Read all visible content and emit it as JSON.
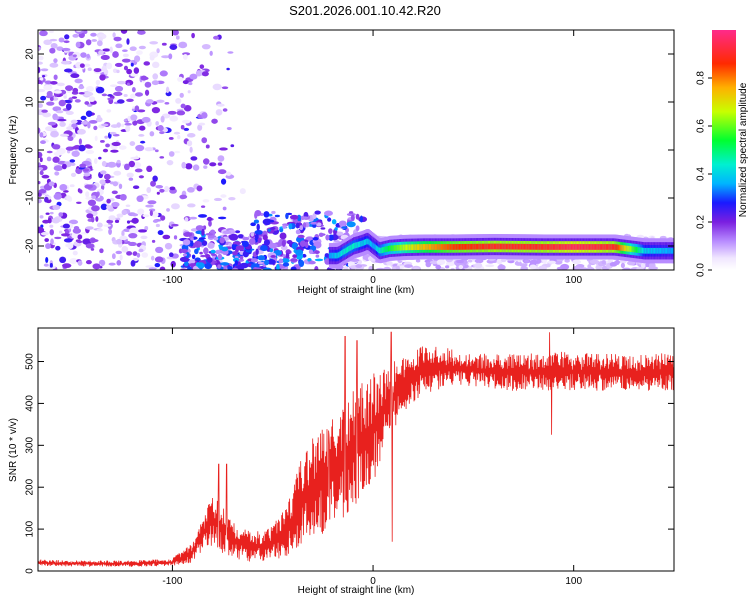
{
  "title": "S201.2026.001.10.42.R20",
  "colors": {
    "spectrogram_sparse": "#b38cff",
    "spectrogram_mid": "#7a1fe0",
    "snr_line": "#e8211e"
  },
  "chart_data": [
    {
      "type": "heatmap",
      "name": "spectrogram",
      "xlabel": "Height of straight line (km)",
      "ylabel": "Frequency (Hz)",
      "xlim": [
        -167,
        150
      ],
      "ylim": [
        -25,
        25
      ],
      "xticks": [
        -100,
        0,
        100
      ],
      "xtick_labels": [
        "-100",
        "0",
        "100"
      ],
      "yticks": [
        -20,
        -10,
        0,
        10,
        20
      ],
      "ytick_labels": [
        "-20",
        "-10",
        "0",
        "10",
        "20"
      ],
      "colorbar": {
        "label": "Normalized spectral amplitude",
        "range": [
          0,
          1
        ],
        "ticks": [
          0.0,
          0.2,
          0.4,
          0.6,
          0.8
        ],
        "tick_labels": [
          "0.0",
          "0.2",
          "0.4",
          "0.6",
          "0.8"
        ]
      },
      "ridge": {
        "description_values": "dominant frequency track (Hz) vs height (km)",
        "x": [
          -22,
          -18,
          -14,
          -10,
          -6,
          -3,
          0,
          3,
          8,
          15,
          25,
          40,
          60,
          85,
          100,
          120,
          135,
          150
        ],
        "y": [
          -22,
          -22,
          -21,
          -20,
          -19.5,
          -19,
          -20,
          -21,
          -20.5,
          -20.3,
          -20.2,
          -20.2,
          -20.1,
          -20.2,
          -20.2,
          -20.2,
          -21,
          -21
        ],
        "amplitude": [
          0.35,
          0.4,
          0.45,
          0.45,
          0.4,
          0.4,
          0.35,
          0.45,
          0.55,
          0.65,
          0.75,
          0.85,
          0.9,
          0.9,
          0.95,
          0.9,
          0.4,
          0.35
        ]
      }
    },
    {
      "type": "line",
      "name": "snr",
      "xlabel": "Height of straight line (km)",
      "ylabel": "SNR (10 * v/v)",
      "xlim": [
        -167,
        150
      ],
      "ylim": [
        0,
        580
      ],
      "xticks": [
        -100,
        0,
        100
      ],
      "xtick_labels": [
        "-100",
        "0",
        "100"
      ],
      "yticks": [
        0,
        100,
        200,
        300,
        400,
        500
      ],
      "ytick_labels": [
        "0",
        "100",
        "200",
        "300",
        "400",
        "500"
      ],
      "envelope": {
        "x": [
          -167,
          -150,
          -120,
          -100,
          -90,
          -85,
          -80,
          -75,
          -70,
          -60,
          -50,
          -40,
          -35,
          -30,
          -25,
          -20,
          -15,
          -10,
          -5,
          0,
          5,
          10,
          15,
          20,
          25,
          30,
          40,
          50,
          60,
          70,
          80,
          90,
          100,
          110,
          120,
          130,
          140,
          150
        ],
        "low": [
          12,
          10,
          10,
          12,
          20,
          50,
          60,
          40,
          30,
          20,
          25,
          40,
          60,
          70,
          80,
          100,
          120,
          150,
          180,
          210,
          280,
          330,
          380,
          400,
          420,
          430,
          440,
          440,
          430,
          430,
          430,
          430,
          430,
          430,
          430,
          430,
          430,
          430
        ],
        "high": [
          28,
          25,
          25,
          30,
          70,
          130,
          180,
          160,
          120,
          90,
          110,
          200,
          290,
          320,
          340,
          370,
          400,
          430,
          460,
          470,
          490,
          500,
          510,
          520,
          540,
          540,
          530,
          520,
          520,
          520,
          520,
          525,
          520,
          520,
          520,
          515,
          520,
          520
        ],
        "spikes": [
          {
            "x": -77,
            "y": 255
          },
          {
            "x": -73,
            "y": 255
          },
          {
            "x": -22,
            "y": 325
          },
          {
            "x": -14,
            "y": 560
          },
          {
            "x": -8,
            "y": 550
          },
          {
            "x": 9,
            "y": 570
          },
          {
            "x": 9.5,
            "y": 70
          },
          {
            "x": 88,
            "y": 570
          },
          {
            "x": 89,
            "y": 325
          }
        ]
      }
    }
  ]
}
